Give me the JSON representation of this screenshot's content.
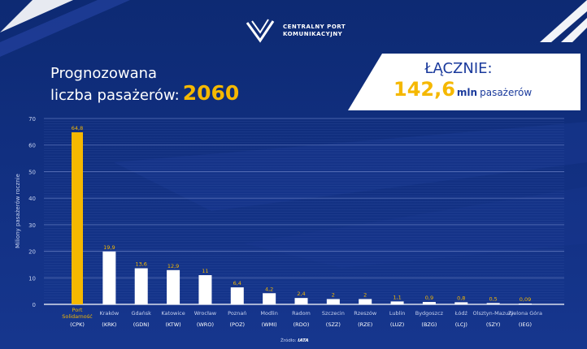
{
  "brand": {
    "line1": "CENTRALNY PORT",
    "line2": "KOMUNIKACYJNY"
  },
  "header": {
    "title_line1": "Prognozowana",
    "title_line2": "liczba pasażerów:",
    "year": "2060"
  },
  "total": {
    "label": "ŁĄCZNIE:",
    "value": "142,6",
    "unit": "mln",
    "desc": "pasażerów"
  },
  "source": {
    "prefix": "Źródło:",
    "name": "IATA"
  },
  "colors": {
    "highlight": "#f5b800",
    "bar": "#ffffff",
    "background": "#112f80",
    "grid": "#5a72b8"
  },
  "chart_data": {
    "type": "bar",
    "title": "Prognozowana liczba pasażerów: 2060",
    "ylabel": "Miliony pasażerów rocznie",
    "xlabel": "",
    "ylim": [
      0,
      70
    ],
    "yticks": [
      0,
      10,
      20,
      30,
      40,
      50,
      60,
      70
    ],
    "grid": true,
    "categories": [
      {
        "name": "Port Solidarność",
        "code": "(CPK)",
        "value": 64.8,
        "label": "64,8",
        "highlight": true
      },
      {
        "name": "Kraków",
        "code": "(KRK)",
        "value": 19.9,
        "label": "19,9"
      },
      {
        "name": "Gdańsk",
        "code": "(GDN)",
        "value": 13.6,
        "label": "13,6"
      },
      {
        "name": "Katowice",
        "code": "(KTW)",
        "value": 12.9,
        "label": "12,9"
      },
      {
        "name": "Wrocław",
        "code": "(WRO)",
        "value": 11,
        "label": "11"
      },
      {
        "name": "Poznań",
        "code": "(POZ)",
        "value": 6.4,
        "label": "6,4"
      },
      {
        "name": "Modlin",
        "code": "(WMI)",
        "value": 4.2,
        "label": "4,2"
      },
      {
        "name": "Radom",
        "code": "(RDO)",
        "value": 2.4,
        "label": "2,4"
      },
      {
        "name": "Szczecin",
        "code": "(SZZ)",
        "value": 2,
        "label": "2"
      },
      {
        "name": "Rzeszów",
        "code": "(RZE)",
        "value": 2,
        "label": "2"
      },
      {
        "name": "Lublin",
        "code": "(LUZ)",
        "value": 1.1,
        "label": "1,1"
      },
      {
        "name": "Bydgoszcz",
        "code": "(BZG)",
        "value": 0.9,
        "label": "0,9"
      },
      {
        "name": "Łódź",
        "code": "(LCJ)",
        "value": 0.8,
        "label": "0,8"
      },
      {
        "name": "Olsztyn-Mazury",
        "code": "(SZY)",
        "value": 0.5,
        "label": "0,5"
      },
      {
        "name": "Zielona Góra",
        "code": "(IEG)",
        "value": 0.09,
        "label": "0,09"
      }
    ]
  }
}
